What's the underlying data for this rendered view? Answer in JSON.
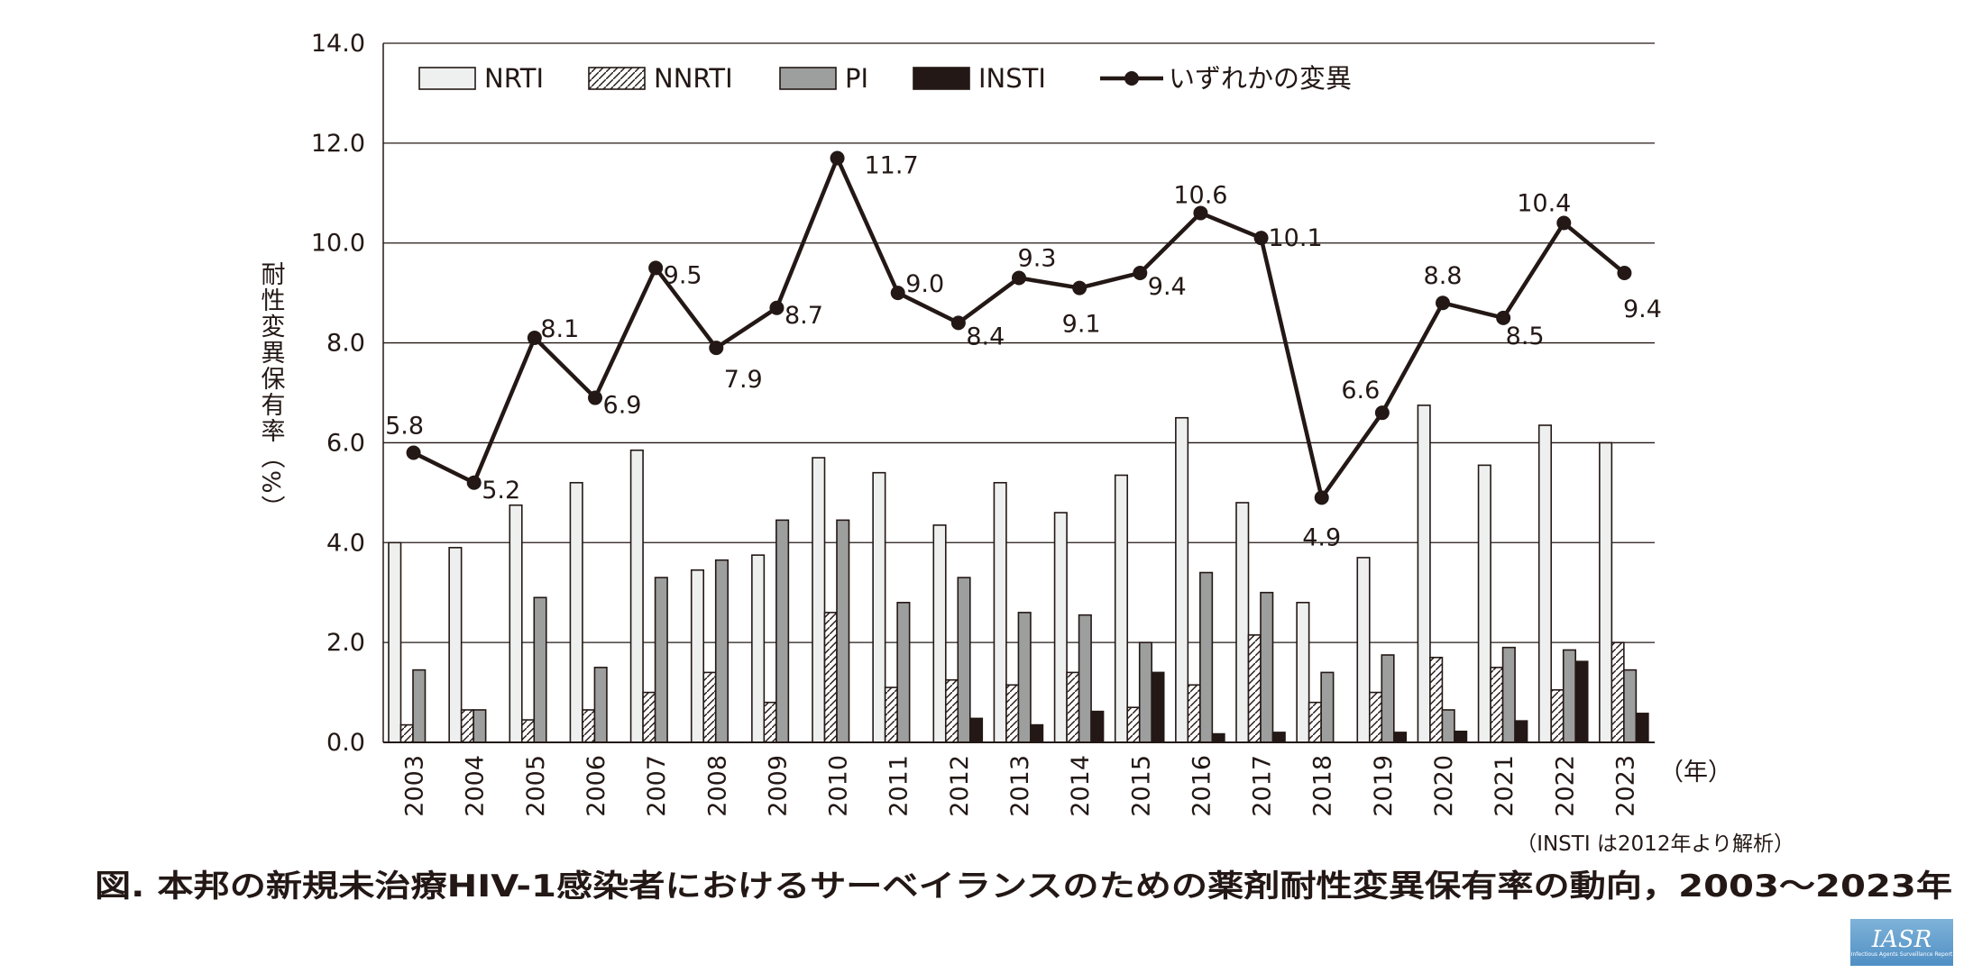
{
  "chart_data": {
    "type": "bar",
    "title": "図. 本邦の新規未治療HIV-1感染者におけるサーベイランスのための薬剤耐性変異保有率の動向，2003～2023年",
    "ylabel": "耐性変異保有率（%）",
    "xlabel": "（年）",
    "note": "（INSTI は2012年より解析）",
    "ylim": [
      0,
      14
    ],
    "yticks": [
      "0.0",
      "2.0",
      "4.0",
      "6.0",
      "8.0",
      "10.0",
      "12.0",
      "14.0"
    ],
    "grid": true,
    "legend_position": "top",
    "categories": [
      "2003",
      "2004",
      "2005",
      "2006",
      "2007",
      "2008",
      "2009",
      "2010",
      "2011",
      "2012",
      "2013",
      "2014",
      "2015",
      "2016",
      "2017",
      "2018",
      "2019",
      "2020",
      "2021",
      "2022",
      "2023"
    ],
    "series": [
      {
        "name": "NRTI",
        "kind": "bar",
        "color": "#eef0ef",
        "values": [
          4.0,
          3.9,
          4.75,
          5.2,
          5.85,
          3.45,
          3.75,
          5.7,
          5.4,
          4.35,
          5.2,
          4.6,
          5.35,
          6.5,
          4.8,
          2.8,
          3.7,
          6.75,
          5.55,
          6.35,
          6.0
        ]
      },
      {
        "name": "NNRTI",
        "kind": "bar",
        "pattern": "hatch",
        "values": [
          0.35,
          0.65,
          0.45,
          0.65,
          1.0,
          1.4,
          0.8,
          2.6,
          1.1,
          1.25,
          1.15,
          1.4,
          0.7,
          1.15,
          2.15,
          0.8,
          1.0,
          1.7,
          1.5,
          1.05,
          2.0
        ]
      },
      {
        "name": "PI",
        "kind": "bar",
        "color": "#9d9f9e",
        "values": [
          1.45,
          0.65,
          2.9,
          1.5,
          3.3,
          3.65,
          4.45,
          4.45,
          2.8,
          3.3,
          2.6,
          2.55,
          2.0,
          3.4,
          3.0,
          1.4,
          1.75,
          0.65,
          1.9,
          1.85,
          1.45
        ]
      },
      {
        "name": "INSTI",
        "kind": "bar",
        "color": "#231815",
        "values": [
          null,
          null,
          null,
          null,
          null,
          null,
          null,
          null,
          null,
          0.48,
          0.35,
          0.62,
          1.4,
          0.17,
          0.2,
          0,
          0.2,
          0.22,
          0.43,
          1.62,
          0.58
        ]
      },
      {
        "name": "いずれかの変異",
        "kind": "line",
        "color": "#231815",
        "values": [
          5.8,
          5.2,
          8.1,
          6.9,
          9.5,
          7.9,
          8.7,
          11.7,
          9.0,
          8.4,
          9.3,
          9.1,
          9.4,
          10.6,
          10.1,
          4.9,
          6.6,
          8.8,
          8.5,
          10.4,
          9.4
        ],
        "labels": [
          "5.8",
          "5.2",
          "8.1",
          "6.9",
          "9.5",
          "7.9",
          "8.7",
          "11.7",
          "9.0",
          "8.4",
          "9.3",
          "9.1",
          "9.4",
          "10.6",
          "10.1",
          "4.9",
          "6.6",
          "8.8",
          "8.5",
          "10.4",
          "9.4"
        ]
      }
    ]
  },
  "logo": {
    "text": "IASR",
    "subtext": "Infectious Agents Surveillance Report"
  }
}
